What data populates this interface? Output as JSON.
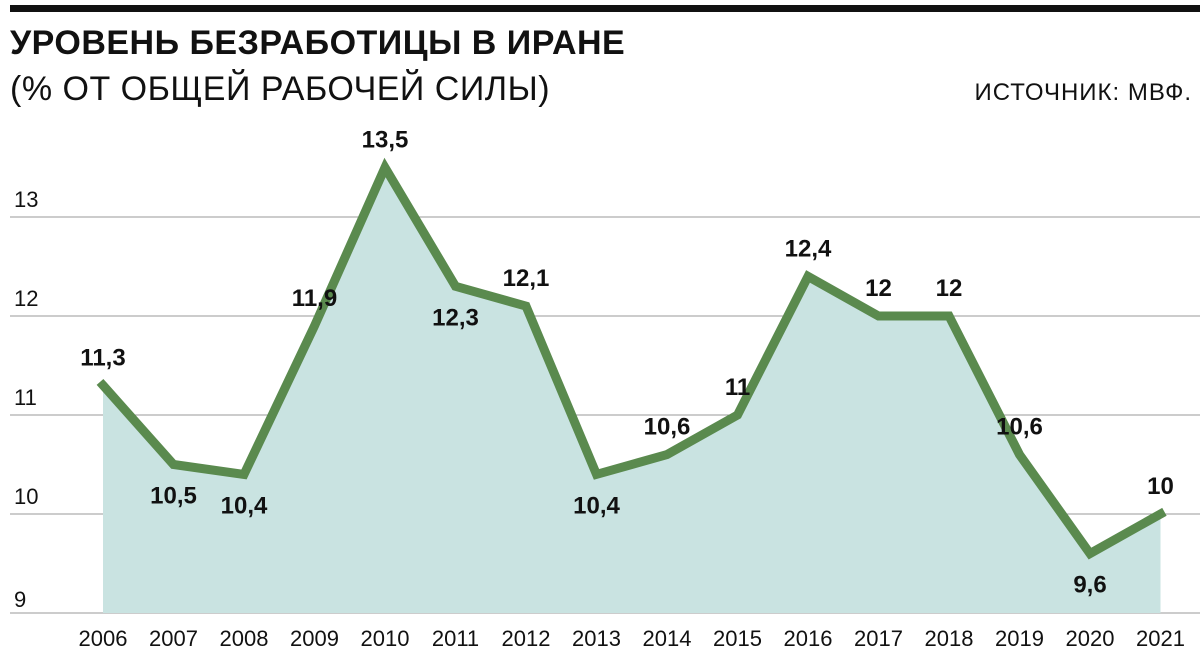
{
  "header": {
    "title": "УРОВЕНЬ БЕЗРАБОТИЦЫ В ИРАНЕ",
    "subtitle": "(% ОТ ОБЩЕЙ РАБОЧЕЙ СИЛЫ)",
    "source": "ИСТОЧНИК: МВФ."
  },
  "colors": {
    "line": "#5a8a4e",
    "area": "#c9e3e1",
    "grid": "#9a9a9a",
    "top_rule": "#111111"
  },
  "chart_data": {
    "type": "area",
    "title": "УРОВЕНЬ БЕЗРАБОТИЦЫ В ИРАНЕ",
    "subtitle": "(% ОТ ОБЩЕЙ РАБОЧЕЙ СИЛЫ)",
    "xlabel": "",
    "ylabel": "",
    "ylim": [
      9,
      14
    ],
    "yticks": [
      "9",
      "10",
      "11",
      "12",
      "13"
    ],
    "grid": true,
    "categories": [
      "2006",
      "2007",
      "2008",
      "2009",
      "2010",
      "2011",
      "2012",
      "2013",
      "2014",
      "2015",
      "2016",
      "2017",
      "2018",
      "2019",
      "2020",
      "2021"
    ],
    "series": [
      {
        "values": [
          11.3,
          10.5,
          10.4,
          11.9,
          13.5,
          12.3,
          12.1,
          10.4,
          10.6,
          11,
          12.4,
          12,
          12,
          10.6,
          9.6,
          10
        ],
        "labels": [
          "11,3",
          "10,5",
          "10,4",
          "11,9",
          "13,5",
          "12,3",
          "12,1",
          "10,4",
          "10,6",
          "11",
          "12,4",
          "12",
          "12",
          "10,6",
          "9,6",
          "10"
        ]
      }
    ]
  }
}
